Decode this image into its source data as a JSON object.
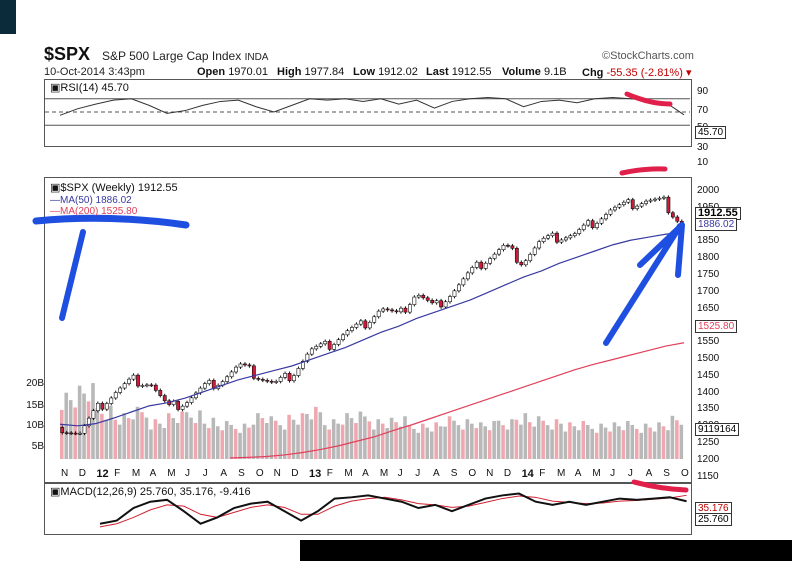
{
  "header": {
    "symbol": "$SPX",
    "name": "S&P 500 Large Cap Index",
    "exchange": "INDA",
    "datetime": "10-Oct-2014 3:43pm",
    "brand": "©StockCharts.com",
    "open_label": "Open",
    "open": "1970.01",
    "high_label": "High",
    "high": "1977.84",
    "low_label": "Low",
    "low": "1912.02",
    "last_label": "Last",
    "last": "1912.55",
    "volume_label": "Volume",
    "volume": "9.1B",
    "chg_label": "Chg",
    "chg": "-55.35 (-2.81%)"
  },
  "rsi": {
    "label": "RSI(14) 45.70",
    "ticks": [
      "90",
      "70",
      "50",
      "30",
      "10"
    ],
    "value_tag": "45.70"
  },
  "price": {
    "label": "$SPX (Weekly) 1912.55",
    "ma50_label": "MA(50) 1886.02",
    "ma200_label": "MA(200) 1525.80",
    "ticks": [
      "2000",
      "1950",
      "1900",
      "1850",
      "1800",
      "1750",
      "1700",
      "1650",
      "1600",
      "1550",
      "1500",
      "1450",
      "1400",
      "1350",
      "1300",
      "1250",
      "1200",
      "1150"
    ],
    "last_tag": "1912.55",
    "ma50_tag": "1886.02",
    "ma200_tag": "1525.80",
    "volume_ticks": [
      "20B",
      "15B",
      "10B",
      "5B"
    ],
    "volume_tag": "9119164"
  },
  "macd": {
    "label": "MACD(12,26,9) 25.760, 35.176, -9.416",
    "tag1": "35.176",
    "tag2": "25.760"
  },
  "xaxis": [
    "N",
    "D",
    "12",
    "F",
    "M",
    "A",
    "M",
    "J",
    "J",
    "A",
    "S",
    "O",
    "N",
    "D",
    "13",
    "F",
    "M",
    "A",
    "M",
    "J",
    "J",
    "A",
    "S",
    "O",
    "N",
    "D",
    "14",
    "F",
    "M",
    "A",
    "M",
    "J",
    "J",
    "A",
    "S",
    "O"
  ],
  "colors": {
    "up": "#ffffff",
    "down": "#d01838",
    "ma50": "#3a3aa0",
    "ma200": "#e0405a",
    "volume_up": "#b8b8b8",
    "volume_down": "#f0a8b0",
    "annotation_blue": "#1f4fe0",
    "annotation_red": "#e0204a"
  },
  "chart_data": {
    "type": "candlestick",
    "frequency": "weekly",
    "range": [
      "2011-10",
      "2014-10-10"
    ],
    "close_points": [
      {
        "x": "Nov-11",
        "y": 1250
      },
      {
        "x": "Dec-11",
        "y": 1230
      },
      {
        "x": "Jan-12",
        "y": 1310
      },
      {
        "x": "Feb-12",
        "y": 1365
      },
      {
        "x": "Mar-12",
        "y": 1405
      },
      {
        "x": "Apr-12",
        "y": 1395
      },
      {
        "x": "May-12",
        "y": 1310
      },
      {
        "x": "Jun-12",
        "y": 1335
      },
      {
        "x": "Jul-12",
        "y": 1380
      },
      {
        "x": "Aug-12",
        "y": 1405
      },
      {
        "x": "Sep-12",
        "y": 1450
      },
      {
        "x": "Oct-12",
        "y": 1420
      },
      {
        "x": "Nov-12",
        "y": 1390
      },
      {
        "x": "Dec-12",
        "y": 1425
      },
      {
        "x": "Jan-13",
        "y": 1500
      },
      {
        "x": "Feb-13",
        "y": 1515
      },
      {
        "x": "Mar-13",
        "y": 1560
      },
      {
        "x": "Apr-13",
        "y": 1585
      },
      {
        "x": "May-13",
        "y": 1640
      },
      {
        "x": "Jun-13",
        "y": 1610
      },
      {
        "x": "Jul-13",
        "y": 1690
      },
      {
        "x": "Aug-13",
        "y": 1640
      },
      {
        "x": "Sep-13",
        "y": 1690
      },
      {
        "x": "Oct-13",
        "y": 1750
      },
      {
        "x": "Nov-13",
        "y": 1800
      },
      {
        "x": "Dec-13",
        "y": 1840
      },
      {
        "x": "Jan-14",
        "y": 1790
      },
      {
        "x": "Feb-14",
        "y": 1855
      },
      {
        "x": "Mar-14",
        "y": 1870
      },
      {
        "x": "Apr-14",
        "y": 1880
      },
      {
        "x": "May-14",
        "y": 1920
      },
      {
        "x": "Jun-14",
        "y": 1960
      },
      {
        "x": "Jul-14",
        "y": 1975
      },
      {
        "x": "Aug-14",
        "y": 1990
      },
      {
        "x": "Sep-14",
        "y": 1985
      },
      {
        "x": "Oct-14",
        "y": 1912.55
      }
    ],
    "ma50_points": [
      1260,
      1255,
      1262,
      1280,
      1300,
      1320,
      1330,
      1345,
      1365,
      1385,
      1405,
      1420,
      1435,
      1450,
      1470,
      1490,
      1510,
      1535,
      1560,
      1580,
      1605,
      1625,
      1645,
      1665,
      1690,
      1715,
      1740,
      1760,
      1785,
      1805,
      1825,
      1845,
      1860,
      1870,
      1880,
      1886.02
    ],
    "ma200_points": [
      1150,
      1152,
      1155,
      1160,
      1168,
      1178,
      1190,
      1205,
      1220,
      1240,
      1258,
      1278,
      1298,
      1318,
      1338,
      1358,
      1378,
      1398,
      1418,
      1438,
      1455,
      1470,
      1485,
      1500,
      1515,
      1525.8
    ],
    "rsi_points": [
      45,
      55,
      62,
      68,
      70,
      60,
      48,
      52,
      60,
      66,
      68,
      58,
      50,
      60,
      70,
      68,
      70,
      66,
      70,
      62,
      68,
      56,
      66,
      70,
      72,
      70,
      58,
      66,
      68,
      64,
      70,
      72,
      70,
      68,
      64,
      45.7
    ],
    "volume_billions": [
      15,
      16,
      12,
      10,
      11,
      9,
      10,
      11,
      9,
      8,
      8,
      10,
      9,
      10,
      11,
      9,
      10,
      10,
      9,
      9,
      8,
      8,
      9,
      9,
      8,
      9,
      10,
      9,
      9,
      8,
      8,
      8,
      8,
      8,
      8,
      9.1
    ],
    "macd_points": [
      -10,
      -5,
      15,
      25,
      28,
      10,
      -10,
      0,
      15,
      22,
      25,
      10,
      -5,
      10,
      30,
      32,
      35,
      30,
      25,
      15,
      20,
      10,
      20,
      30,
      35,
      38,
      25,
      20,
      25,
      20,
      25,
      30,
      28,
      30,
      32,
      25.76
    ],
    "signal_points": [
      -15,
      -10,
      0,
      12,
      20,
      18,
      5,
      0,
      8,
      16,
      20,
      16,
      5,
      5,
      18,
      26,
      30,
      32,
      28,
      22,
      20,
      16,
      18,
      24,
      30,
      34,
      32,
      26,
      24,
      22,
      23,
      26,
      27,
      29,
      31,
      35.176
    ],
    "ylim": [
      1150,
      2050
    ]
  }
}
